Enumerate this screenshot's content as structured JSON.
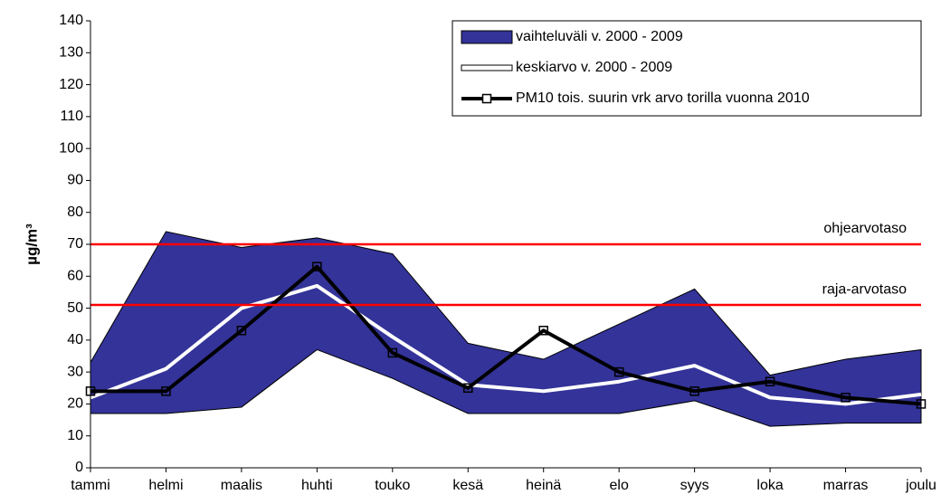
{
  "chart_data": {
    "type": "line",
    "y_label": "µg/m³",
    "categories": [
      "tammi",
      "helmi",
      "maalis",
      "huhti",
      "touko",
      "kesä",
      "heinä",
      "elo",
      "syys",
      "loka",
      "marras",
      "joulu"
    ],
    "ylim": [
      0,
      140
    ],
    "yticks": [
      0,
      10,
      20,
      30,
      40,
      50,
      60,
      70,
      80,
      90,
      100,
      110,
      120,
      130,
      140
    ],
    "legend": "upper right",
    "series": [
      {
        "name": "vaihteluväli v. 2000 - 2009",
        "color": "#333399",
        "type": "range",
        "upper": [
          33,
          74,
          69,
          72,
          67,
          39,
          34,
          45,
          56,
          29,
          34,
          37
        ],
        "lower": [
          17,
          17,
          19,
          37,
          28,
          17,
          17,
          17,
          21,
          13,
          14,
          14
        ]
      },
      {
        "name": "keskiarvo v. 2000 - 2009",
        "color": "#ffffff",
        "type": "line",
        "values": [
          22,
          31,
          50,
          57,
          41,
          26,
          24,
          27,
          32,
          22,
          20,
          23
        ]
      },
      {
        "name": "PM10 tois. suurin vrk arvo torilla vuonna 2010",
        "color": "#000000",
        "type": "line",
        "marker": "square",
        "values": [
          24,
          24,
          43,
          63,
          36,
          25,
          43,
          30,
          24,
          27,
          22,
          20
        ]
      }
    ],
    "reference_lines": [
      {
        "label": "ohjearvotaso",
        "value": 70,
        "color": "#ff0000"
      },
      {
        "label": "raja-arvotaso",
        "value": 51,
        "color": "#ff0000"
      }
    ]
  }
}
